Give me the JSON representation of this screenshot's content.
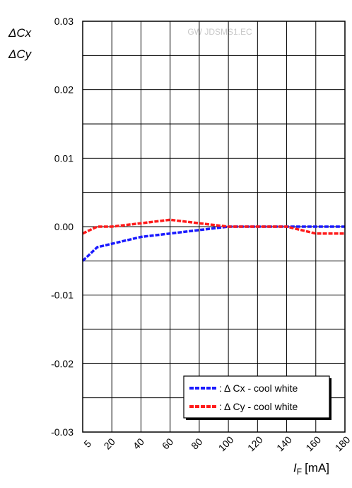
{
  "watermark": "GW JDSMS1.EC",
  "chart_data": {
    "type": "line",
    "title": "",
    "ylabel_lines": [
      "ΔCx",
      "ΔCy"
    ],
    "xlabel_main": "I",
    "xlabel_sub": "F",
    "xlabel_unit": "[mA]",
    "xlim": [
      0,
      180
    ],
    "ylim": [
      -0.03,
      0.03
    ],
    "x_ticks": [
      5,
      20,
      40,
      60,
      80,
      100,
      120,
      140,
      160,
      180
    ],
    "x_tick_labels": [
      "5",
      "20",
      "40",
      "60",
      "80",
      "100",
      "120",
      "140",
      "160",
      "180"
    ],
    "y_ticks": [
      -0.03,
      -0.02,
      -0.01,
      0.0,
      0.01,
      0.02,
      0.03
    ],
    "y_tick_labels": [
      "-0.03",
      "-0.02",
      "-0.01",
      "0.00",
      "0.01",
      "0.02",
      "0.03"
    ],
    "grid": true,
    "legend_position": "bottom-right",
    "series": [
      {
        "name": ": Δ Cx - cool white",
        "color": "#1a1aff",
        "x": [
          0,
          5,
          10,
          20,
          40,
          60,
          80,
          100,
          120,
          140,
          160,
          180
        ],
        "y": [
          -0.005,
          -0.004,
          -0.003,
          -0.0025,
          -0.0015,
          -0.001,
          -0.0005,
          0.0,
          0.0,
          0.0,
          0.0,
          0.0
        ]
      },
      {
        "name": ": Δ Cy - cool white",
        "color": "#ff1a1a",
        "x": [
          0,
          5,
          10,
          20,
          40,
          60,
          80,
          100,
          120,
          140,
          160,
          180
        ],
        "y": [
          -0.001,
          -0.0005,
          0.0,
          0.0,
          0.0005,
          0.001,
          0.0005,
          0.0,
          0.0,
          0.0,
          -0.001,
          -0.001
        ]
      }
    ]
  }
}
